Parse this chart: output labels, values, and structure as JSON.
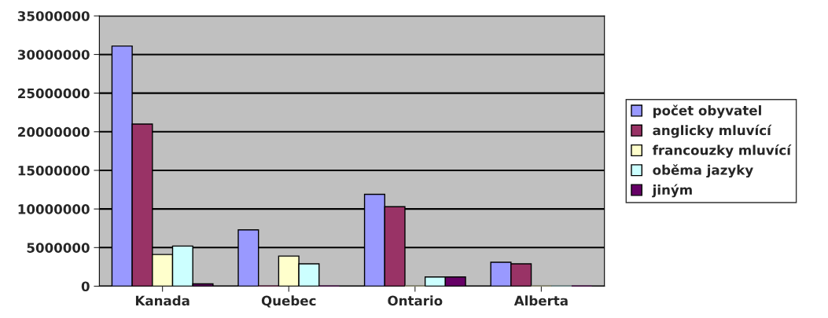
{
  "chart_data": {
    "type": "bar",
    "categories": [
      "Kanada",
      "Quebec",
      "Ontario",
      "Alberta"
    ],
    "series": [
      {
        "name": "počet obyvatel",
        "color": "#9999ff",
        "values": [
          31100000,
          7300000,
          11900000,
          3100000
        ]
      },
      {
        "name": "anglicky mluvící",
        "color": "#993366",
        "values": [
          21000000,
          0,
          10300000,
          2900000
        ]
      },
      {
        "name": "francouzky mluvící",
        "color": "#ffffcc",
        "values": [
          4100000,
          3900000,
          0,
          0
        ]
      },
      {
        "name": "oběma jazyky",
        "color": "#ccffff",
        "values": [
          5200000,
          2900000,
          1200000,
          0
        ]
      },
      {
        "name": "jiným",
        "color": "#660066",
        "values": [
          300000,
          0,
          1200000,
          0
        ]
      }
    ],
    "ylim": [
      0,
      35000000
    ],
    "yticks": [
      0,
      5000000,
      10000000,
      15000000,
      20000000,
      25000000,
      30000000,
      35000000
    ],
    "grid": "y",
    "legend": "right"
  }
}
